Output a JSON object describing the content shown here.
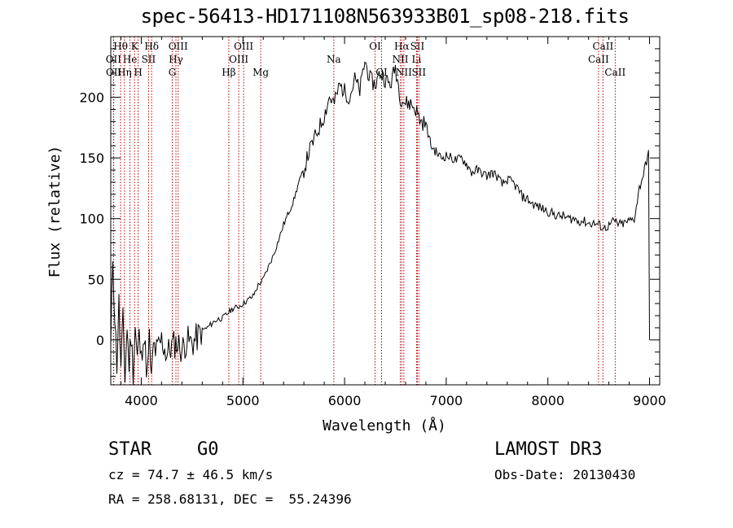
{
  "chart_data": {
    "type": "line",
    "title": "spec-56413-HD171108N563933B01_sp08-218.fits",
    "xlabel": "Wavelength (Å)",
    "ylabel": "Flux (relative)",
    "xlim": [
      3700,
      9100
    ],
    "ylim": [
      -37,
      250
    ],
    "x_ticks": [
      4000,
      5000,
      6000,
      7000,
      8000,
      9000
    ],
    "y_ticks": [
      0,
      50,
      100,
      150,
      200
    ],
    "series": [
      {
        "name": "spectrum",
        "x": [
          3700,
          3720,
          3740,
          3760,
          3780,
          3800,
          3820,
          3840,
          3860,
          3880,
          3900,
          3920,
          3940,
          3960,
          3980,
          4000,
          4020,
          4040,
          4060,
          4080,
          4100,
          4120,
          4150,
          4200,
          4250,
          4300,
          4350,
          4400,
          4450,
          4500,
          4550,
          4600,
          4650,
          4700,
          4750,
          4800,
          4850,
          4900,
          4950,
          5000,
          5050,
          5100,
          5150,
          5200,
          5250,
          5300,
          5350,
          5400,
          5450,
          5500,
          5550,
          5600,
          5650,
          5700,
          5750,
          5800,
          5850,
          5900,
          5950,
          6000,
          6050,
          6100,
          6150,
          6200,
          6250,
          6300,
          6350,
          6400,
          6450,
          6500,
          6550,
          6600,
          6650,
          6700,
          6750,
          6800,
          6850,
          6900,
          6950,
          7000,
          7050,
          7100,
          7150,
          7200,
          7250,
          7300,
          7350,
          7400,
          7450,
          7500,
          7550,
          7600,
          7650,
          7700,
          7750,
          7800,
          7850,
          7900,
          7950,
          8000,
          8050,
          8100,
          8150,
          8200,
          8250,
          8300,
          8350,
          8400,
          8450,
          8500,
          8550,
          8600,
          8650,
          8700,
          8750,
          8800,
          8850,
          8900,
          8950,
          8990,
          9000
        ],
        "values": [
          -10,
          70,
          20,
          -20,
          30,
          -25,
          15,
          -30,
          10,
          -20,
          5,
          -28,
          12,
          -15,
          3,
          -18,
          8,
          -10,
          -30,
          0,
          -35,
          -5,
          -10,
          0,
          -12,
          -5,
          -2,
          -8,
          0,
          -3,
          2,
          8,
          10,
          14,
          17,
          18,
          22,
          26,
          27,
          30,
          33,
          36,
          45,
          50,
          60,
          70,
          82,
          95,
          105,
          115,
          130,
          140,
          155,
          165,
          175,
          185,
          200,
          195,
          210,
          205,
          200,
          215,
          205,
          230,
          215,
          210,
          220,
          215,
          210,
          225,
          200,
          195,
          195,
          190,
          180,
          178,
          160,
          155,
          150,
          152,
          150,
          148,
          150,
          145,
          138,
          140,
          138,
          135,
          138,
          135,
          128,
          132,
          130,
          125,
          118,
          116,
          112,
          110,
          108,
          106,
          104,
          102,
          102,
          100,
          100,
          98,
          98,
          96,
          96,
          95,
          92,
          94,
          98,
          95,
          96,
          98,
          100,
          125,
          140,
          155,
          0
        ]
      }
    ],
    "lines": [
      {
        "label": "Hθ",
        "x": 3797,
        "row": 0
      },
      {
        "label": "OII",
        "x": 3727,
        "row": 1
      },
      {
        "label": "OII",
        "x": 3729,
        "row": 2
      },
      {
        "label": "He",
        "x": 3889,
        "row": 1
      },
      {
        "label": "Hη",
        "x": 3835,
        "row": 2
      },
      {
        "label": "K",
        "x": 3934,
        "row": 0
      },
      {
        "label": "H",
        "x": 3969,
        "row": 2
      },
      {
        "label": "SII",
        "x": 4072,
        "row": 1
      },
      {
        "label": "Hδ",
        "x": 4102,
        "row": 0
      },
      {
        "label": "OIII",
        "x": 4363,
        "row": 0
      },
      {
        "label": "Hγ",
        "x": 4341,
        "row": 1
      },
      {
        "label": "G",
        "x": 4305,
        "row": 2
      },
      {
        "label": "OIII",
        "x": 5007,
        "row": 0
      },
      {
        "label": "OIII",
        "x": 4959,
        "row": 1
      },
      {
        "label": "Hβ",
        "x": 4861,
        "row": 2
      },
      {
        "label": "Mg",
        "x": 5175,
        "row": 2
      },
      {
        "label": "Na",
        "x": 5894,
        "row": 1
      },
      {
        "label": "OI",
        "x": 6300,
        "row": 0
      },
      {
        "label": "OI",
        "x": 6364,
        "row": 2
      },
      {
        "label": "Hα",
        "x": 6563,
        "row": 0
      },
      {
        "label": "NII",
        "x": 6548,
        "row": 1
      },
      {
        "label": "NII",
        "x": 6583,
        "row": 2
      },
      {
        "label": "SII",
        "x": 6716,
        "row": 0
      },
      {
        "label": "Li",
        "x": 6708,
        "row": 1
      },
      {
        "label": "SII",
        "x": 6731,
        "row": 2
      },
      {
        "label": "CaII",
        "x": 8542,
        "row": 0
      },
      {
        "label": "CaII",
        "x": 8498,
        "row": 1
      },
      {
        "label": "CaII",
        "x": 8662,
        "row": 2
      }
    ]
  },
  "info": {
    "object_class": "STAR",
    "subclass": "G0",
    "survey": "LAMOST DR3",
    "cz": "cz = 74.7 ± 46.5 km/s",
    "obs_date": "Obs-Date: 20130430",
    "radec": "RA = 258.68131, DEC =  55.24396"
  },
  "colors": {
    "spectrum": "#000000",
    "line_markers": "#b00000"
  }
}
